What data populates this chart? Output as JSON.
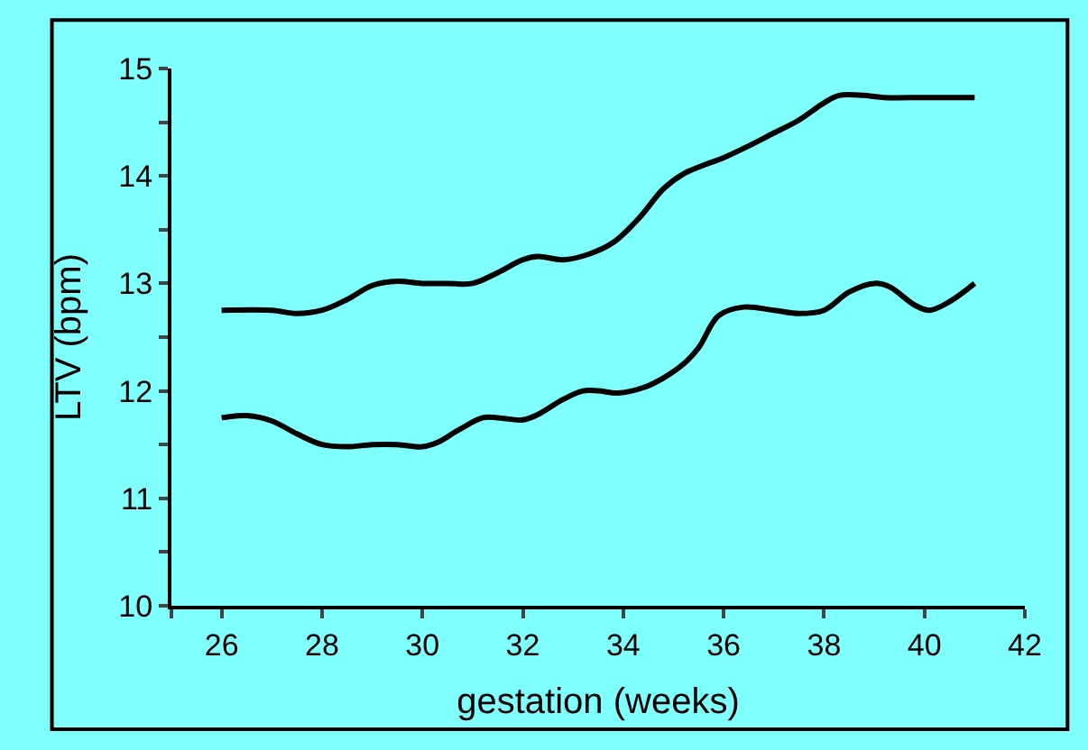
{
  "chart_data": {
    "type": "line",
    "xlabel": "gestation (weeks)",
    "ylabel": "LTV (bpm)",
    "xlim": [
      25,
      42
    ],
    "xticks": [
      {
        "value": 25,
        "label": null
      },
      26,
      28,
      30,
      32,
      34,
      36,
      38,
      40,
      42
    ],
    "ylim": [
      10,
      15
    ],
    "yticks": [
      10,
      {
        "value": 10.5,
        "label": null
      },
      11,
      {
        "value": 11.5,
        "label": null
      },
      12,
      {
        "value": 12.5,
        "label": null
      },
      13,
      {
        "value": 13.5,
        "label": null
      },
      14,
      {
        "value": 14.5,
        "label": null
      },
      15
    ],
    "grid": false,
    "legend": false,
    "marker": "none",
    "line_style": "solid",
    "series": [
      {
        "color": "#000000",
        "x": [
          26,
          27,
          27.5,
          28,
          28.5,
          29,
          29.5,
          30,
          30.5,
          31,
          31.5,
          32,
          32.3,
          32.8,
          33.3,
          33.8,
          34.3,
          34.8,
          35.2,
          35.6,
          36,
          36.5,
          37,
          37.5,
          38,
          38.3,
          38.8,
          39.2,
          40,
          41
        ],
        "values": [
          12.75,
          12.75,
          12.72,
          12.75,
          12.85,
          12.98,
          13.02,
          13.0,
          13.0,
          13.0,
          13.1,
          13.22,
          13.25,
          13.22,
          13.27,
          13.38,
          13.6,
          13.88,
          14.02,
          14.1,
          14.17,
          14.28,
          14.4,
          14.52,
          14.68,
          14.75,
          14.75,
          14.73,
          14.73,
          14.73
        ]
      },
      {
        "color": "#000000",
        "x": [
          26,
          26.5,
          27,
          27.5,
          28,
          28.5,
          29,
          29.5,
          30,
          30.3,
          30.7,
          31.2,
          31.5,
          32,
          32.3,
          32.8,
          33.2,
          33.5,
          33.9,
          34.4,
          34.8,
          35.2,
          35.5,
          35.9,
          36.4,
          37,
          37.5,
          38,
          38.5,
          39,
          39.3,
          39.8,
          40.1,
          40.5,
          41
        ],
        "values": [
          11.75,
          11.77,
          11.72,
          11.6,
          11.5,
          11.48,
          11.5,
          11.5,
          11.48,
          11.52,
          11.63,
          11.75,
          11.75,
          11.73,
          11.78,
          11.92,
          12.0,
          12.0,
          11.98,
          12.03,
          12.12,
          12.25,
          12.4,
          12.7,
          12.78,
          12.75,
          12.72,
          12.75,
          12.92,
          13.0,
          12.97,
          12.8,
          12.75,
          12.83,
          13.0
        ]
      }
    ]
  }
}
